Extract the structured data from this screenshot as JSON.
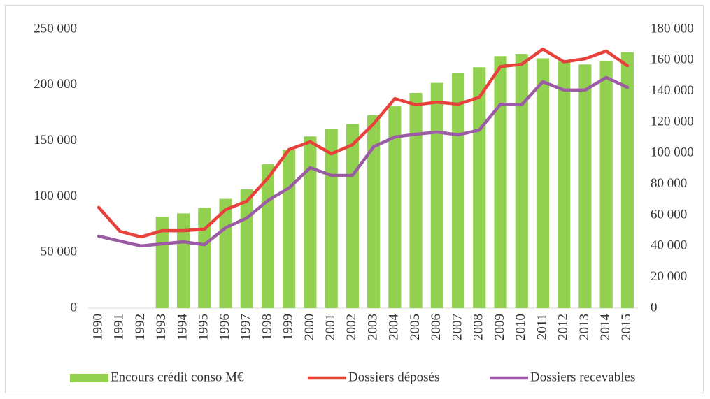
{
  "chart_data": {
    "type": "bar_line",
    "categories": [
      "1990",
      "1991",
      "1992",
      "1993",
      "1994",
      "1995",
      "1996",
      "1997",
      "1998",
      "1999",
      "2000",
      "2001",
      "2002",
      "2003",
      "2004",
      "2005",
      "2006",
      "2007",
      "2008",
      "2009",
      "2010",
      "2011",
      "2012",
      "2013",
      "2014",
      "2015"
    ],
    "series": [
      {
        "name": "Encours crédit conso M€",
        "type": "bar",
        "color": "#92d050",
        "axis": "y",
        "values": [
          null,
          null,
          null,
          82000,
          85000,
          90000,
          98000,
          106500,
          129000,
          142000,
          154000,
          161000,
          165000,
          173000,
          181000,
          193000,
          202000,
          211000,
          216000,
          226000,
          228000,
          224000,
          221000,
          218500,
          221500,
          229500
        ]
      },
      {
        "name": "Dossiers déposés",
        "type": "line",
        "color": "#e8413c",
        "axis": "y2",
        "values": [
          65000,
          49600,
          46000,
          50000,
          50000,
          51000,
          63600,
          69000,
          84000,
          102400,
          107400,
          99700,
          105500,
          119000,
          135300,
          131300,
          133000,
          131700,
          136200,
          156000,
          157400,
          167300,
          159000,
          161000,
          166000,
          156500
        ]
      },
      {
        "name": "Dossiers recevables",
        "type": "line",
        "color": "#9b5ba5",
        "axis": "y2",
        "values": [
          46500,
          43300,
          40200,
          41500,
          42800,
          41000,
          51900,
          58200,
          69500,
          77600,
          90700,
          85700,
          85700,
          104200,
          110500,
          112300,
          113700,
          111900,
          115000,
          131700,
          131300,
          146200,
          140800,
          140800,
          148900,
          142600
        ]
      }
    ],
    "ylim": [
      0,
      250000
    ],
    "yticks": [
      0,
      {
        "value": 50000,
        "label": "50 000"
      },
      {
        "value": 100000,
        "label": "100 000"
      },
      {
        "value": 150000,
        "label": "150 000"
      },
      {
        "value": 200000,
        "label": "200 000"
      },
      {
        "value": 250000,
        "label": "250 000"
      }
    ],
    "y2lim": [
      0,
      180000
    ],
    "y2ticks": [
      0,
      {
        "value": 20000,
        "label": "20 000"
      },
      {
        "value": 40000,
        "label": "40 000"
      },
      {
        "value": 60000,
        "label": "60 000"
      },
      {
        "value": 80000,
        "label": "80 000"
      },
      {
        "value": 100000,
        "label": "100 000"
      },
      {
        "value": 120000,
        "label": "120 000"
      },
      {
        "value": 140000,
        "label": "140 000"
      },
      {
        "value": 160000,
        "label": "160 000"
      },
      {
        "value": 180000,
        "label": "180 000"
      }
    ],
    "grid": false,
    "legend": "bottom"
  }
}
